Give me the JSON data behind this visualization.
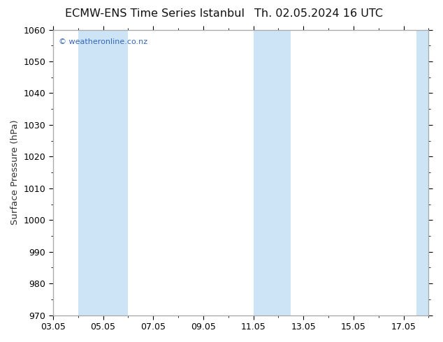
{
  "title_left": "ECMW-ENS Time Series Istanbul",
  "title_right": "Th. 02.05.2024 16 UTC",
  "ylabel": "Surface Pressure (hPa)",
  "ylim": [
    970,
    1060
  ],
  "yticks": [
    970,
    980,
    990,
    1000,
    1010,
    1020,
    1030,
    1040,
    1050,
    1060
  ],
  "xlim": [
    0,
    15
  ],
  "xtick_labels": [
    "03.05",
    "05.05",
    "07.05",
    "09.05",
    "11.05",
    "13.05",
    "15.05",
    "17.05"
  ],
  "xtick_positions": [
    0,
    2,
    4,
    6,
    8,
    10,
    12,
    14
  ],
  "watermark": "© weatheronline.co.nz",
  "watermark_color": "#3366bb",
  "bg_color": "#ffffff",
  "plot_bg_color": "#ffffff",
  "shaded_bands": [
    {
      "x_start": 1.0,
      "x_end": 3.0,
      "color": "#cce4f5"
    },
    {
      "x_start": 8.0,
      "x_end": 9.5,
      "color": "#cce4f5"
    },
    {
      "x_start": 14.5,
      "x_end": 15.0,
      "color": "#cce4f5"
    }
  ],
  "title_fontsize": 11.5,
  "tick_fontsize": 9,
  "ylabel_fontsize": 9.5,
  "spine_color": "#aaaaaa"
}
